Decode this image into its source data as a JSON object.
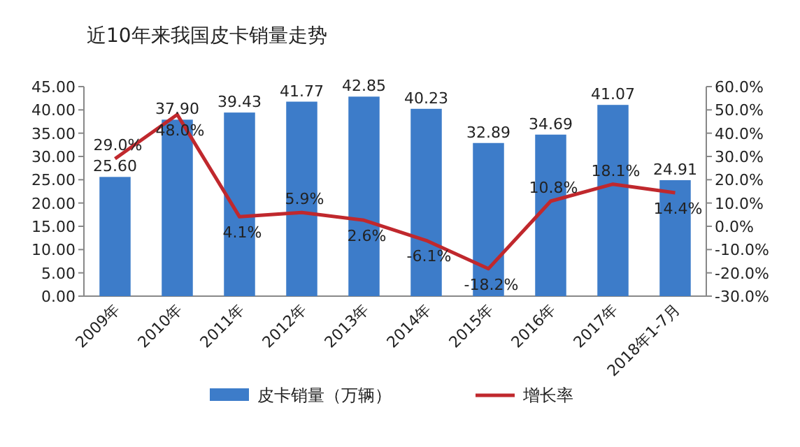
{
  "chart_data": {
    "type": "bar",
    "title": "近10年来我国皮卡销量走势",
    "categories": [
      "2009年",
      "2010年",
      "2011年",
      "2012年",
      "2013年",
      "2014年",
      "2015年",
      "2016年",
      "2017年",
      "2018年1-7月"
    ],
    "series": [
      {
        "name": "皮卡销量（万辆）",
        "color": "#3d7cc9",
        "values": [
          25.6,
          37.9,
          39.43,
          41.77,
          42.85,
          40.23,
          32.89,
          34.69,
          41.07,
          24.91
        ],
        "value_labels": [
          "25.60",
          "37.90",
          "39.43",
          "41.77",
          "42.85",
          "40.23",
          "32.89",
          "34.69",
          "41.07",
          "24.91"
        ]
      },
      {
        "name": "增长率",
        "type": "line",
        "axis": "y2",
        "color": "#c0282d",
        "values": [
          29.0,
          48.0,
          4.1,
          5.9,
          2.6,
          -6.1,
          -18.2,
          10.8,
          18.1,
          14.4
        ],
        "value_labels": [
          "29.0%",
          "48.0%",
          "4.1%",
          "5.9%",
          "2.6%",
          "-6.1%",
          "-18.2%",
          "10.8%",
          "18.1%",
          "14.4%"
        ]
      }
    ],
    "ylim": [
      0,
      45
    ],
    "yticks": [
      {
        "value": 0,
        "label": "0.00"
      },
      {
        "value": 5,
        "label": "5.00"
      },
      {
        "value": 10,
        "label": "10.00"
      },
      {
        "value": 15,
        "label": "15.00"
      },
      {
        "value": 20,
        "label": "20.00"
      },
      {
        "value": 25,
        "label": "25.00"
      },
      {
        "value": 30,
        "label": "30.00"
      },
      {
        "value": 35,
        "label": "35.00"
      },
      {
        "value": 40,
        "label": "40.00"
      },
      {
        "value": 45,
        "label": "45.00"
      }
    ],
    "y2lim": [
      -30,
      60
    ],
    "y2ticks": [
      {
        "value": -30,
        "label": "-30.0%"
      },
      {
        "value": -20,
        "label": "-20.0%"
      },
      {
        "value": -10,
        "label": "-10.0%"
      },
      {
        "value": 0,
        "label": "0.0%"
      },
      {
        "value": 10,
        "label": "10.0%"
      },
      {
        "value": 20,
        "label": "20.0%"
      },
      {
        "value": 30,
        "label": "30.0%"
      },
      {
        "value": 40,
        "label": "40.0%"
      },
      {
        "value": 50,
        "label": "50.0%"
      },
      {
        "value": 60,
        "label": "60.0%"
      }
    ],
    "legend": "bottom"
  }
}
